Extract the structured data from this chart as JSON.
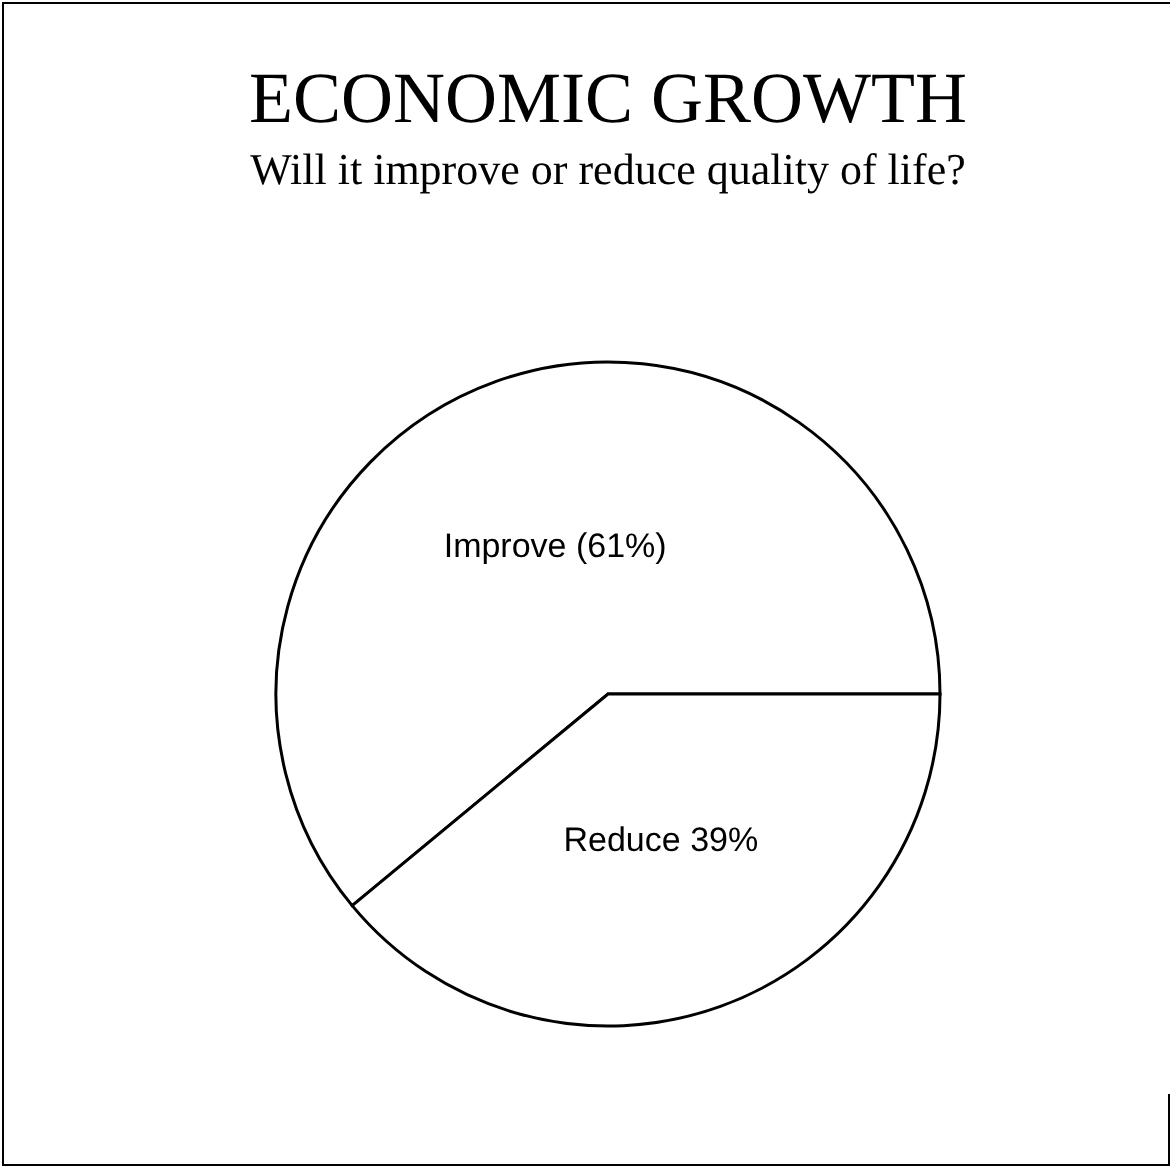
{
  "chart_data": {
    "type": "pie",
    "title": "ECONOMIC GROWTH",
    "subtitle": "Will it improve or reduce quality of life?",
    "categories": [
      "Improve (61%)",
      "Reduce 39%"
    ],
    "values": [
      61,
      39
    ],
    "colors": [
      "#ffffff",
      "#ffffff"
    ]
  }
}
